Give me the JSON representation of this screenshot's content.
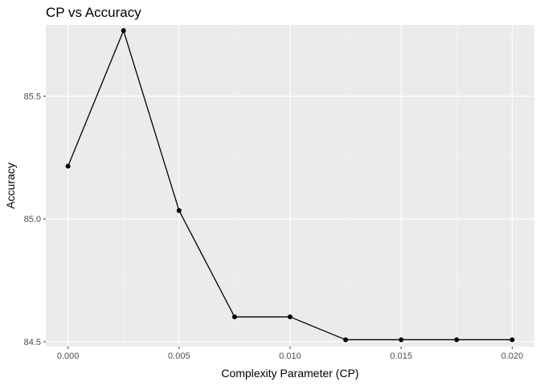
{
  "chart_data": {
    "type": "line",
    "title": "CP vs Accuracy",
    "xlabel": "Complexity Parameter (CP)",
    "ylabel": "Accuracy",
    "x": [
      0.0,
      0.0025,
      0.005,
      0.0075,
      0.01,
      0.0125,
      0.015,
      0.0175,
      0.02
    ],
    "y": [
      85.215,
      85.767,
      85.034,
      84.601,
      84.601,
      84.508,
      84.508,
      84.508,
      84.508
    ],
    "xlim": [
      -0.001,
      0.021
    ],
    "ylim": [
      84.48,
      85.79
    ],
    "x_ticks": [
      0.0,
      0.005,
      0.01,
      0.015,
      0.02
    ],
    "x_tick_labels": [
      "0.000",
      "0.005",
      "0.010",
      "0.015",
      "0.020"
    ],
    "y_ticks": [
      84.5,
      85.0,
      85.5
    ],
    "y_tick_labels": [
      "84.5",
      "85.0",
      "85.5"
    ],
    "grid": true,
    "panel_background": "#ebebeb",
    "grid_major_color": "#ffffff",
    "grid_minor_color": "#f5f5f5",
    "line_color": "#000000",
    "point_color": "#000000"
  }
}
